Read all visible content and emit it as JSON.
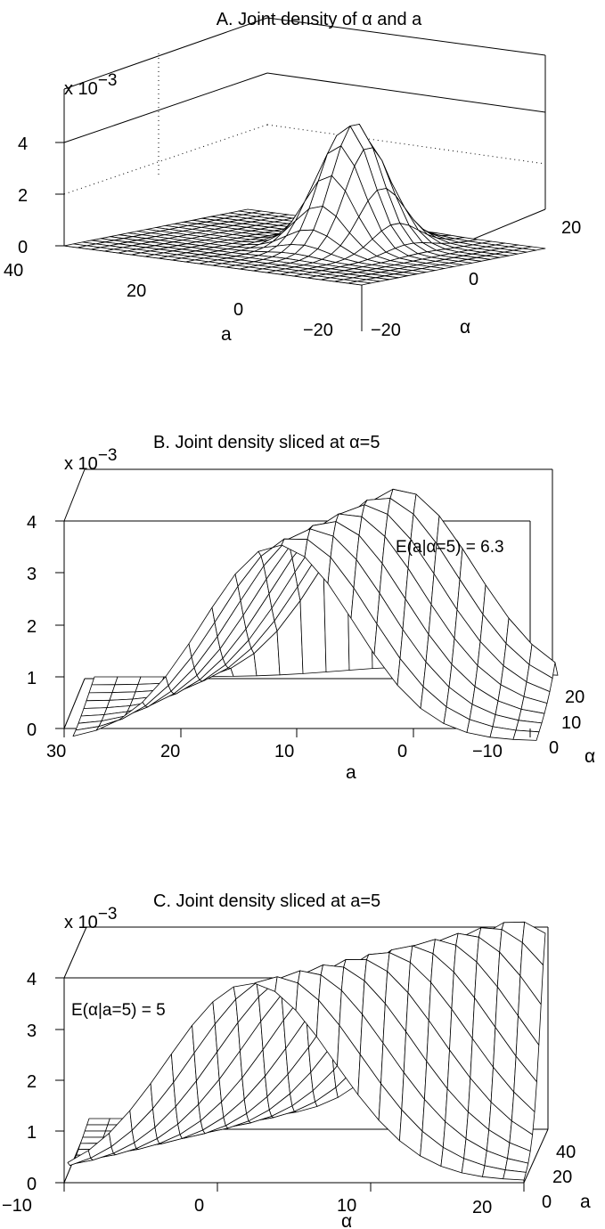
{
  "chart_data": [
    {
      "type": "surface",
      "title": "A. Joint density of α and a",
      "z_multiplier_label": "x 10",
      "z_multiplier_exponent": "−3",
      "zticks": [
        "0",
        "2",
        "4"
      ],
      "x_axis": {
        "label": "a",
        "range": [
          -20,
          40
        ],
        "ticks": [
          "40",
          "20",
          "0",
          "−20"
        ]
      },
      "y_axis": {
        "label": "α",
        "range": [
          -20,
          20
        ],
        "ticks": [
          "−20",
          "0",
          "20"
        ]
      },
      "zlim": [
        0,
        0.005
      ],
      "peak": {
        "a": 5,
        "alpha": 5,
        "z": 0.0048
      },
      "grid": true
    },
    {
      "type": "surface",
      "title": "B. Joint density sliced at α=5",
      "z_multiplier_label": "x 10",
      "z_multiplier_exponent": "−3",
      "zticks": [
        "0",
        "1",
        "2",
        "3",
        "4"
      ],
      "x_axis": {
        "label": "a",
        "range": [
          -10,
          30
        ],
        "ticks": [
          "30",
          "20",
          "10",
          "0",
          "−10"
        ]
      },
      "y_axis": {
        "label": "α",
        "range": [
          0,
          20
        ],
        "ticks": [
          "0",
          "10",
          "20"
        ]
      },
      "annotation": "E(a|α=5) = 6.3",
      "conditional_mean": 6.3,
      "grid": true
    },
    {
      "type": "surface",
      "title": "C. Joint density sliced at a=5",
      "z_multiplier_label": "x 10",
      "z_multiplier_exponent": "−3",
      "zticks": [
        "0",
        "1",
        "2",
        "3",
        "4"
      ],
      "x_axis": {
        "label": "α",
        "range": [
          -10,
          20
        ],
        "ticks": [
          "−10",
          "0",
          "10",
          "20"
        ]
      },
      "y_axis": {
        "label": "a",
        "range": [
          0,
          40
        ],
        "ticks": [
          "0",
          "20",
          "40"
        ]
      },
      "annotation": "E(α|a=5) = 5",
      "conditional_mean": 5,
      "grid": true
    }
  ]
}
